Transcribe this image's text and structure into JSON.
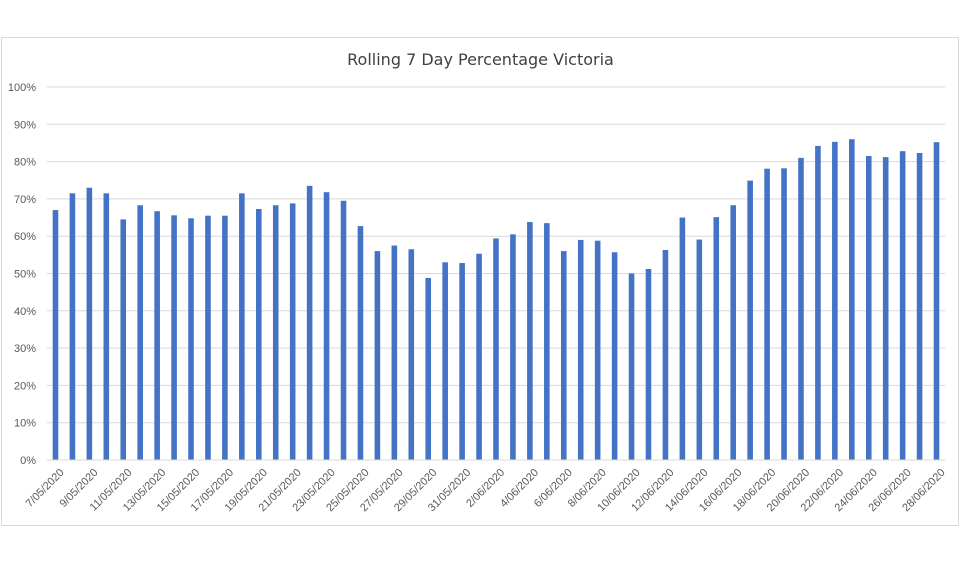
{
  "chart_data": {
    "type": "bar",
    "title": "Rolling 7 Day Percentage Victoria",
    "xlabel": "",
    "ylabel": "",
    "ylim": [
      0,
      100
    ],
    "y_ticks": [
      "0%",
      "10%",
      "20%",
      "30%",
      "40%",
      "50%",
      "60%",
      "70%",
      "80%",
      "90%",
      "100%"
    ],
    "grid": true,
    "legend": "none",
    "bar_color": "#4472c4",
    "x_tick_labels": [
      "7/05/2020",
      "9/05/2020",
      "11/05/2020",
      "13/05/2020",
      "15/05/2020",
      "17/05/2020",
      "19/05/2020",
      "21/05/2020",
      "23/05/2020",
      "25/05/2020",
      "27/05/2020",
      "29/05/2020",
      "31/05/2020",
      "2/06/2020",
      "4/06/2020",
      "6/06/2020",
      "8/06/2020",
      "10/06/2020",
      "12/06/2020",
      "14/06/2020",
      "16/06/2020",
      "18/06/2020",
      "20/06/2020",
      "22/06/2020",
      "24/06/2020",
      "26/06/2020",
      "28/06/2020"
    ],
    "categories": [
      "7/05/2020",
      "8/05/2020",
      "9/05/2020",
      "10/05/2020",
      "11/05/2020",
      "12/05/2020",
      "13/05/2020",
      "14/05/2020",
      "15/05/2020",
      "16/05/2020",
      "17/05/2020",
      "18/05/2020",
      "19/05/2020",
      "20/05/2020",
      "21/05/2020",
      "22/05/2020",
      "23/05/2020",
      "24/05/2020",
      "25/05/2020",
      "26/05/2020",
      "27/05/2020",
      "28/05/2020",
      "29/05/2020",
      "30/05/2020",
      "31/05/2020",
      "1/06/2020",
      "2/06/2020",
      "3/06/2020",
      "4/06/2020",
      "5/06/2020",
      "6/06/2020",
      "7/06/2020",
      "8/06/2020",
      "9/06/2020",
      "10/06/2020",
      "11/06/2020",
      "12/06/2020",
      "13/06/2020",
      "14/06/2020",
      "15/06/2020",
      "16/06/2020",
      "17/06/2020",
      "18/06/2020",
      "19/06/2020",
      "20/06/2020",
      "21/06/2020",
      "22/06/2020",
      "23/06/2020",
      "24/06/2020",
      "25/06/2020",
      "26/06/2020",
      "27/06/2020",
      "28/06/2020"
    ],
    "values": [
      67,
      71.5,
      73,
      71.5,
      64.5,
      68.3,
      66.7,
      65.6,
      64.8,
      65.5,
      65.5,
      71.5,
      67.3,
      68.3,
      68.8,
      73.5,
      71.8,
      69.5,
      62.7,
      56,
      57.5,
      56.5,
      48.8,
      53,
      52.8,
      55.3,
      59.4,
      60.5,
      63.8,
      63.5,
      56,
      59,
      58.8,
      55.7,
      50,
      51.2,
      56.3,
      65,
      59.1,
      65.1,
      68.3,
      74.9,
      78.1,
      78.2,
      81,
      84.2,
      85.3,
      86,
      81.5,
      81.2,
      82.8,
      82.3,
      85.2
    ]
  }
}
